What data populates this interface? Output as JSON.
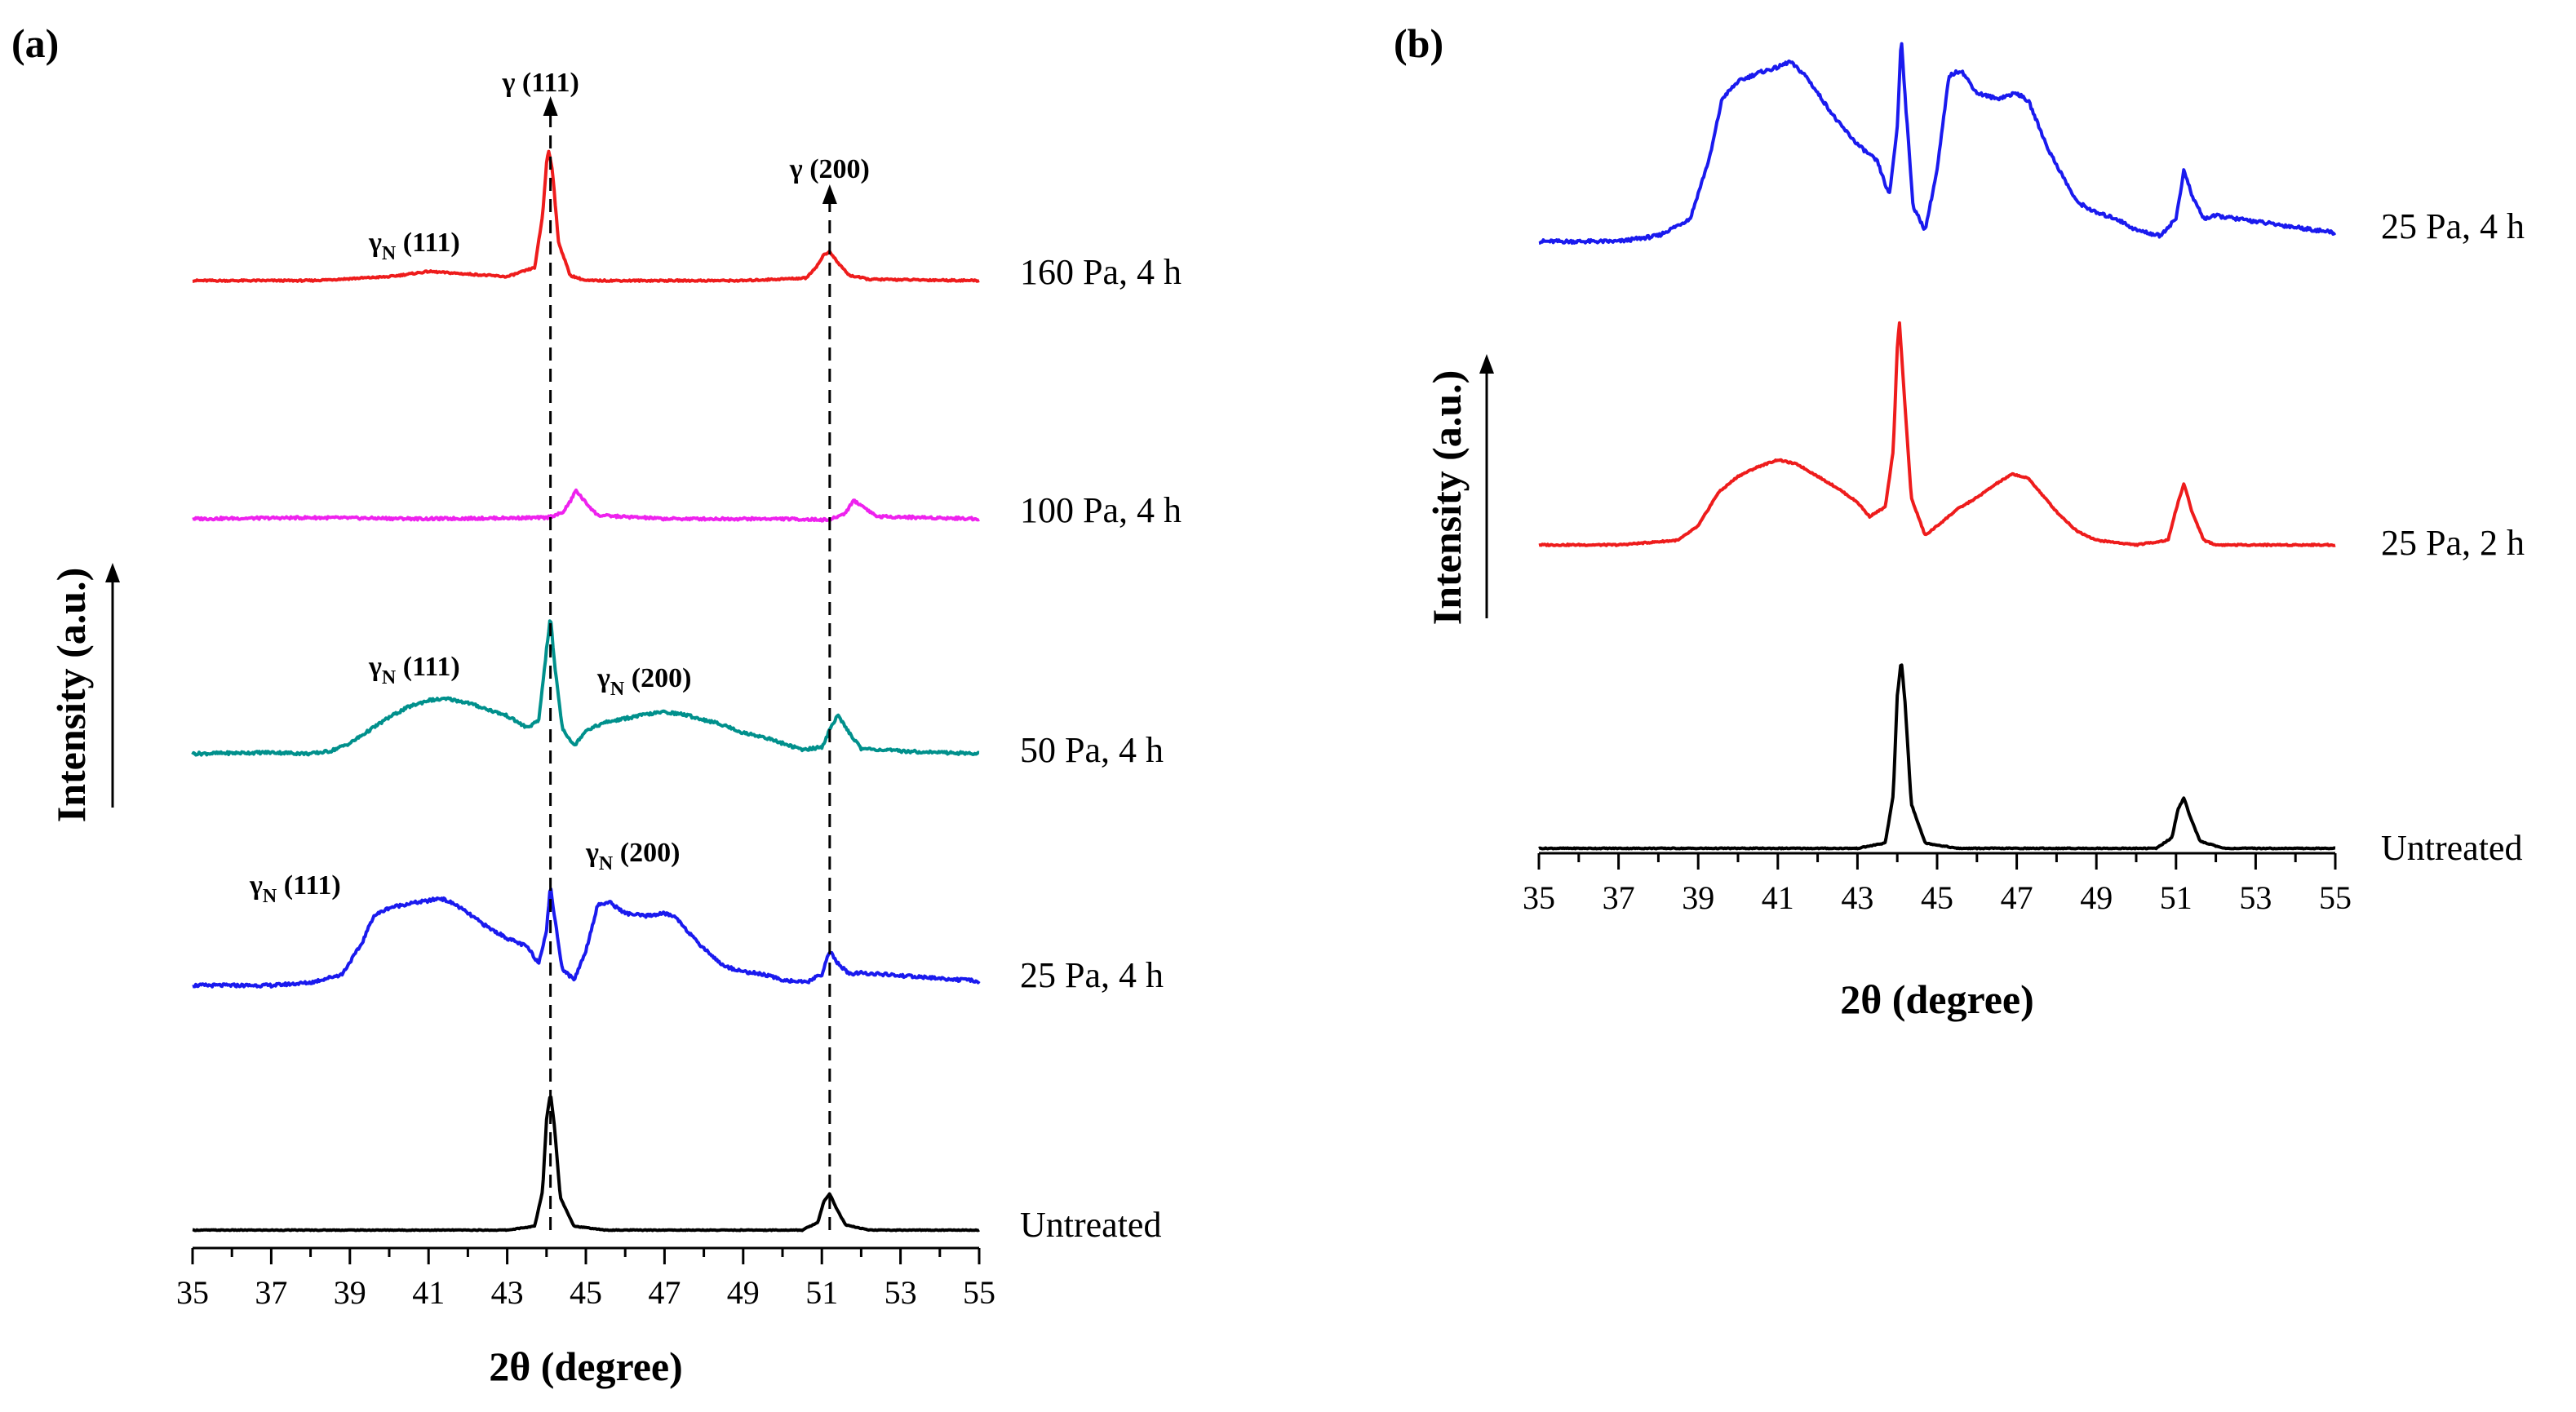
{
  "chart_data": [
    {
      "panel": "(a)",
      "type": "line",
      "title": "",
      "xlabel": "2θ (degree)",
      "ylabel": "Intensity (a.u.)",
      "xlim": [
        35,
        55
      ],
      "xticks": [
        35,
        37,
        39,
        41,
        43,
        45,
        47,
        49,
        51,
        53,
        55
      ],
      "yticks": [],
      "grid": false,
      "series": [
        {
          "name": "160 Pa, 4 h",
          "color": "#ee1c1c",
          "x": [
            35,
            38,
            40,
            41,
            42,
            43,
            43.7,
            43.9,
            44.0,
            44.05,
            44.15,
            44.3,
            44.6,
            45,
            47,
            49,
            50.6,
            50.9,
            51.05,
            51.2,
            51.4,
            51.7,
            52.2,
            55
          ],
          "y": [
            0,
            0,
            0.3,
            0.7,
            0.5,
            0.3,
            1.0,
            5,
            9,
            10,
            8.5,
            3,
            0.4,
            0,
            0,
            0,
            0.2,
            1.2,
            2.0,
            2.2,
            1.4,
            0.4,
            0.1,
            0
          ]
        },
        {
          "name": "100 Pa, 4 h",
          "color": "#ee22ee",
          "x": [
            35,
            38,
            41,
            44.0,
            44.4,
            44.6,
            44.75,
            44.95,
            45.3,
            47,
            50,
            51.2,
            51.6,
            51.8,
            52.0,
            52.4,
            55
          ],
          "y": [
            0,
            0.1,
            0,
            0.1,
            0.5,
            1.5,
            2.5,
            1.6,
            0.3,
            0,
            0,
            -0.1,
            0.5,
            1.6,
            1.2,
            0.2,
            0
          ]
        },
        {
          "name": "50 Pa, 4 h",
          "color": "#00908c",
          "x": [
            35,
            37,
            38,
            38.5,
            39,
            39.5,
            40,
            40.5,
            41,
            41.5,
            42,
            42.5,
            43,
            43.5,
            43.8,
            44.0,
            44.1,
            44.2,
            44.4,
            44.7,
            45,
            45.5,
            46,
            46.5,
            47,
            47.5,
            48,
            48.5,
            49,
            49.5,
            50,
            50.5,
            51,
            51.2,
            51.4,
            51.6,
            52,
            53,
            55
          ],
          "y": [
            0,
            0.1,
            0,
            0.2,
            0.8,
            1.8,
            2.8,
            3.6,
            4.1,
            4.2,
            3.9,
            3.4,
            2.9,
            2.0,
            2.5,
            8,
            10.5,
            7,
            2,
            0.6,
            1.8,
            2.4,
            2.7,
            3.0,
            3.2,
            3.0,
            2.6,
            2.2,
            1.6,
            1.3,
            0.8,
            0.3,
            0.5,
            1.8,
            3.0,
            2.0,
            0.4,
            0.2,
            0
          ]
        },
        {
          "name": "25 Pa, 4 h",
          "color": "#1a1aee",
          "x": [
            35,
            37,
            38,
            38.8,
            39.3,
            39.6,
            40,
            40.5,
            41,
            41.3,
            41.7,
            42,
            42.5,
            43,
            43.5,
            43.8,
            44.0,
            44.1,
            44.2,
            44.4,
            44.7,
            45.0,
            45.3,
            45.6,
            46,
            46.5,
            47,
            47.3,
            47.8,
            48.5,
            49,
            49.5,
            50,
            50.6,
            51.0,
            51.2,
            51.4,
            51.7,
            52,
            53,
            55
          ],
          "y": [
            0,
            0,
            0.2,
            0.8,
            3,
            5,
            5.6,
            5.9,
            6.1,
            6.3,
            5.8,
            5.2,
            4.2,
            3.4,
            2.8,
            1.6,
            4,
            7.2,
            5,
            1.2,
            0.4,
            2.5,
            5.8,
            6,
            5.2,
            5.0,
            5.2,
            4.9,
            3.2,
            1.4,
            1.0,
            0.8,
            0.4,
            0.2,
            0.8,
            2.5,
            1.6,
            0.8,
            0.9,
            0.7,
            0.3
          ]
        },
        {
          "name": "Untreated",
          "color": "#000000",
          "x": [
            35,
            43,
            43.7,
            43.9,
            44.0,
            44.1,
            44.2,
            44.35,
            44.7,
            45.5,
            50.5,
            50.9,
            51.05,
            51.2,
            51.35,
            51.6,
            52.2,
            55
          ],
          "y": [
            0,
            0,
            0.3,
            3,
            8.5,
            10.5,
            8,
            2.5,
            0.3,
            0,
            0,
            0.6,
            2.2,
            2.8,
            1.8,
            0.4,
            0,
            0
          ]
        }
      ],
      "annotations": [
        {
          "text": "γ (111)",
          "x": 44.1,
          "type": "reference-line"
        },
        {
          "text": "γ (200)",
          "x": 51.2,
          "type": "reference-line"
        },
        {
          "main": "γ",
          "sub": "N",
          "rest": " (111)",
          "series": "160 Pa, 4 h"
        },
        {
          "main": "γ",
          "sub": "N",
          "rest": " (111)",
          "series": "50 Pa, 4 h"
        },
        {
          "main": "γ",
          "sub": "N",
          "rest": " (200)",
          "series": "50 Pa, 4 h"
        },
        {
          "main": "γ",
          "sub": "N",
          "rest": " (111)",
          "series": "25 Pa, 4 h"
        },
        {
          "main": "γ",
          "sub": "N",
          "rest": " (200)",
          "series": "25 Pa, 4 h"
        }
      ]
    },
    {
      "panel": "(b)",
      "type": "line",
      "title": "",
      "xlabel": "2θ (degree)",
      "ylabel": "Intensity (a.u.)",
      "xlim": [
        35,
        55
      ],
      "xticks": [
        35,
        37,
        39,
        41,
        43,
        45,
        47,
        49,
        51,
        53,
        55
      ],
      "yticks": [],
      "grid": false,
      "series": [
        {
          "name": "25 Pa, 4 h",
          "color": "#1a1aee",
          "x": [
            35,
            37,
            38,
            38.8,
            39.3,
            39.6,
            40,
            40.5,
            41,
            41.3,
            41.7,
            42,
            42.5,
            43,
            43.5,
            43.8,
            44.0,
            44.1,
            44.2,
            44.4,
            44.7,
            45.0,
            45.3,
            45.6,
            46,
            46.5,
            47,
            47.3,
            47.8,
            48.5,
            49,
            49.5,
            50,
            50.6,
            51.0,
            51.2,
            51.4,
            51.7,
            52,
            53,
            55
          ],
          "y": [
            0,
            0,
            0.2,
            0.8,
            3,
            5,
            5.6,
            5.9,
            6.1,
            6.3,
            5.8,
            5.2,
            4.2,
            3.4,
            2.8,
            1.6,
            4,
            7.2,
            5,
            1.2,
            0.4,
            2.5,
            5.8,
            6,
            5.2,
            5.0,
            5.2,
            4.9,
            3.2,
            1.4,
            1.0,
            0.8,
            0.4,
            0.2,
            0.8,
            2.5,
            1.6,
            0.8,
            0.9,
            0.7,
            0.3
          ]
        },
        {
          "name": "25 Pa, 2 h",
          "color": "#ee1c1c",
          "x": [
            35,
            37,
            38.5,
            39.0,
            39.5,
            40,
            40.5,
            41,
            41.5,
            42,
            42.5,
            43,
            43.3,
            43.7,
            43.9,
            44.0,
            44.05,
            44.15,
            44.35,
            44.7,
            45,
            45.5,
            46,
            46.5,
            46.9,
            47.3,
            48,
            48.5,
            49,
            50,
            50.8,
            51.0,
            51.2,
            51.4,
            51.7,
            52,
            55
          ],
          "y": [
            0,
            0,
            0.2,
            0.8,
            2.2,
            2.9,
            3.3,
            3.6,
            3.4,
            2.9,
            2.4,
            1.8,
            1.2,
            1.6,
            4,
            8.3,
            9.5,
            7,
            2,
            0.4,
            0.8,
            1.5,
            2.0,
            2.6,
            3.0,
            2.8,
            1.4,
            0.6,
            0.2,
            0,
            0.2,
            1.5,
            2.6,
            1.4,
            0.2,
            0,
            0
          ]
        },
        {
          "name": "Untreated",
          "color": "#000000",
          "x": [
            35,
            43,
            43.7,
            43.9,
            44.0,
            44.1,
            44.2,
            44.35,
            44.7,
            45.5,
            50.5,
            50.9,
            51.05,
            51.2,
            51.35,
            51.6,
            52.2,
            55
          ],
          "y": [
            0,
            0,
            0.3,
            3,
            8.5,
            10.5,
            8,
            2.5,
            0.3,
            0,
            0,
            0.6,
            2.2,
            2.8,
            1.8,
            0.4,
            0,
            0
          ]
        }
      ]
    }
  ]
}
